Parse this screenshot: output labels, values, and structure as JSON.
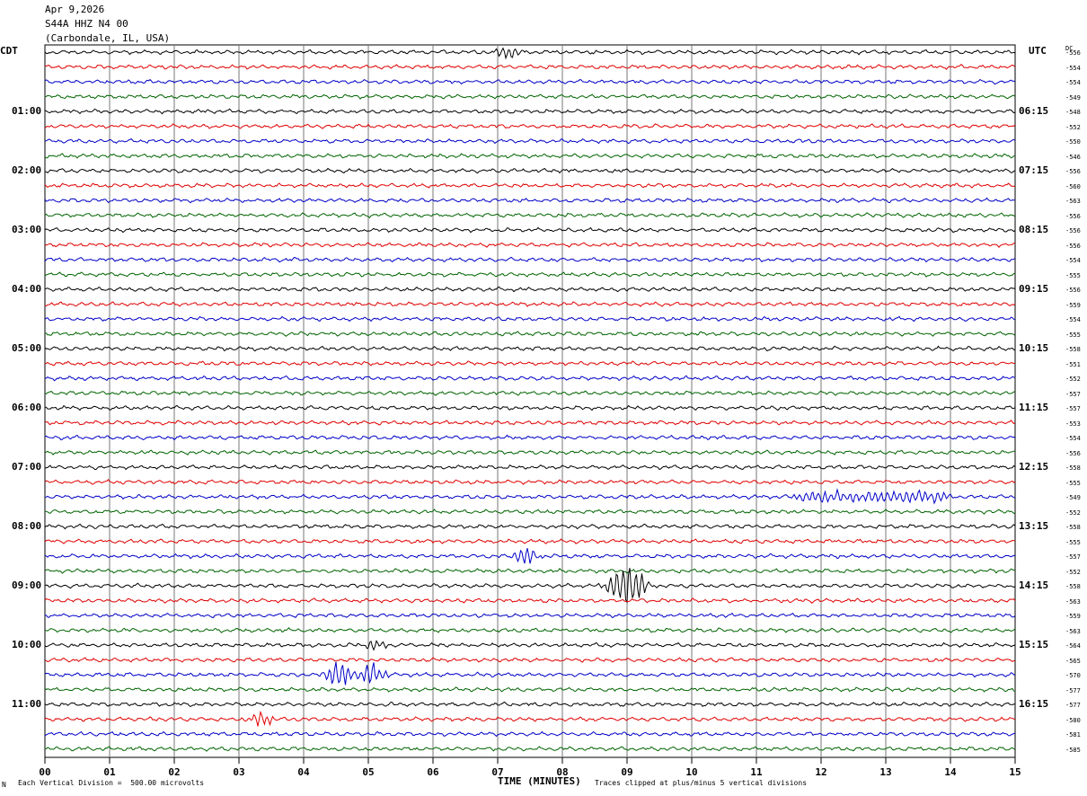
{
  "header": {
    "date": "Apr 9,2026",
    "station": "S44A HHZ N4 00",
    "location": "(Carbondale, IL, USA)"
  },
  "left_caption": "CDT",
  "right_caption": "UTC",
  "dc_caption": "DC",
  "left_time_labels": [
    "01:00",
    "02:00",
    "03:00",
    "04:00",
    "05:00",
    "06:00",
    "07:00",
    "08:00",
    "09:00",
    "10:00",
    "11:00"
  ],
  "right_time_labels": [
    "06:15",
    "07:15",
    "08:15",
    "09:15",
    "10:15",
    "11:15",
    "12:15",
    "13:15",
    "14:15",
    "15:15",
    "16:15"
  ],
  "dc_offsets": [
    "-556",
    "-554",
    "-554",
    "-549",
    "-548",
    "-552",
    "-550",
    "-546",
    "-556",
    "-560",
    "-563",
    "-556",
    "-556",
    "-556",
    "-554",
    "-555",
    "-556",
    "-559",
    "-554",
    "-555",
    "-558",
    "-551",
    "-552",
    "-557",
    "-557",
    "-553",
    "-554",
    "-556",
    "-558",
    "-555",
    "-549",
    "-552",
    "-558",
    "-555",
    "-557",
    "-552",
    "-558",
    "-563",
    "-559",
    "-563",
    "-564",
    "-565",
    "-570",
    "-577",
    "-577",
    "-580",
    "-581",
    "-585"
  ],
  "footer": {
    "left_marker": "N",
    "scale_note": "Each Vertical Division =  500.00 microvolts",
    "clip_note": "Traces clipped at plus/minus 5 vertical divisions"
  },
  "chart_data": {
    "type": "line",
    "title": "S44A HHZ N4 00 (Carbondale, IL, USA) Apr 9,2026",
    "xlabel": "TIME (MINUTES)",
    "x_ticks": [
      "00",
      "01",
      "02",
      "03",
      "04",
      "05",
      "06",
      "07",
      "08",
      "09",
      "10",
      "11",
      "12",
      "13",
      "14",
      "15"
    ],
    "xlim": [
      0,
      15
    ],
    "minutes_per_trace": 15,
    "trace_count": 48,
    "trace_colors": [
      "#000000",
      "#e00000",
      "#0000c8",
      "#006400"
    ],
    "grid": true,
    "events": [
      {
        "trace": 0,
        "minute": 7.15,
        "amp": 0.45
      },
      {
        "trace": 30,
        "minute": 12.8,
        "amp": 0.35,
        "duration": 2.2
      },
      {
        "trace": 34,
        "minute": 7.45,
        "amp": 0.6
      },
      {
        "trace": 36,
        "minute": 8.85,
        "amp": 0.9
      },
      {
        "trace": 36,
        "minute": 9.1,
        "amp": 1.3
      },
      {
        "trace": 40,
        "minute": 5.1,
        "amp": 0.3
      },
      {
        "trace": 42,
        "minute": 4.55,
        "amp": 1.0
      },
      {
        "trace": 42,
        "minute": 5.05,
        "amp": 0.8
      },
      {
        "trace": 45,
        "minute": 3.35,
        "amp": 0.45
      }
    ]
  }
}
